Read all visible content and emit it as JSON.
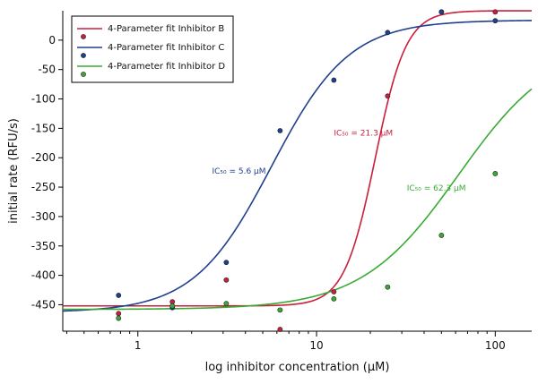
{
  "chart_data": {
    "type": "scatter",
    "title": "",
    "xlabel": "log inhibitor concentration (µM)",
    "ylabel": "initial rate (RFU/s)",
    "xscale": "log",
    "xlim": [
      0.38,
      160
    ],
    "ylim": [
      -495,
      50
    ],
    "x_ticks": [
      1,
      10,
      100
    ],
    "x_tick_labels": [
      "1",
      "10",
      "100"
    ],
    "y_ticks": [
      0,
      -50,
      -100,
      -150,
      -200,
      -250,
      -300,
      -350,
      -400,
      -450
    ],
    "y_tick_labels": [
      "0",
      "-50",
      "-100",
      "-150",
      "-200",
      "-250",
      "-300",
      "-350",
      "-400",
      "-450"
    ],
    "grid": false,
    "legend": {
      "position": "top-left",
      "entries": [
        "4-Parameter fit Inhibitor B",
        "4-Parameter fit Inhibitor C",
        "4-Parameter fit Inhibitor D"
      ]
    },
    "series": [
      {
        "name": "4-Parameter fit Inhibitor B",
        "color": "#c8203c",
        "points": {
          "x": [
            0.78,
            1.56,
            3.125,
            6.25,
            12.5,
            25,
            50,
            100
          ],
          "y": [
            -465,
            -445,
            -408,
            -492,
            -428,
            -95,
            48,
            48
          ]
        },
        "fit": {
          "bottom": -452,
          "top": 50,
          "ic50": 21.3,
          "hill": 5.0
        },
        "annotation": {
          "text": "IC₅₀ = 21.3 µM",
          "x": 12.5,
          "y": -162
        }
      },
      {
        "name": "4-Parameter fit Inhibitor C",
        "color": "#1f3f8f",
        "points": {
          "x": [
            0.78,
            1.56,
            3.125,
            6.25,
            12.5,
            25,
            50,
            100
          ],
          "y": [
            -434,
            -455,
            -378,
            -154,
            -68,
            13,
            48,
            33
          ]
        },
        "fit": {
          "bottom": -463,
          "top": 34,
          "ic50": 5.6,
          "hill": 2.0
        },
        "annotation": {
          "text": "IC₅₀ = 5.6 µM",
          "x": 2.6,
          "y": -227
        }
      },
      {
        "name": "4-Parameter fit Inhibitor D",
        "color": "#3aaa35",
        "points": {
          "x": [
            0.78,
            1.56,
            3.125,
            6.25,
            12.5,
            25,
            50,
            100
          ],
          "y": [
            -473,
            -452,
            -448,
            -459,
            -440,
            -420,
            -332,
            -227
          ]
        },
        "fit": {
          "bottom": -458,
          "top": 0,
          "ic50": 62.3,
          "hill": 1.6
        },
        "annotation": {
          "text": "IC₅₀ = 62.3 µM",
          "x": 32,
          "y": -256
        }
      }
    ]
  }
}
